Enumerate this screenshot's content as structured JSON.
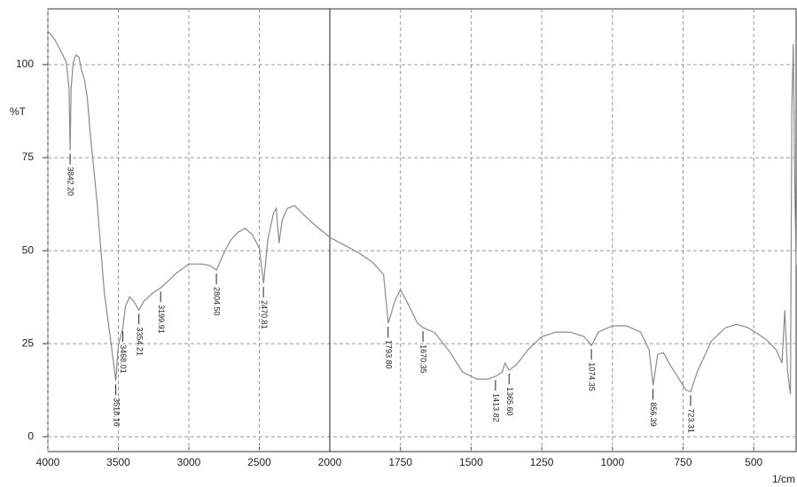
{
  "chart_data": {
    "type": "line",
    "x_label": "1/cm",
    "y_label": "%T",
    "x": [
      4000,
      3950,
      3900,
      3870,
      3850,
      3842,
      3835,
      3820,
      3800,
      3780,
      3760,
      3740,
      3720,
      3700,
      3650,
      3600,
      3550,
      3518,
      3500,
      3468,
      3450,
      3420,
      3390,
      3354,
      3320,
      3250,
      3200,
      3150,
      3100,
      3000,
      2900,
      2850,
      2804,
      2750,
      2700,
      2650,
      2600,
      2550,
      2500,
      2470,
      2440,
      2400,
      2380,
      2360,
      2340,
      2320,
      2300,
      2250,
      2200,
      2100,
      2000,
      1900,
      1850,
      1810,
      1793,
      1770,
      1750,
      1720,
      1690,
      1670,
      1630,
      1580,
      1530,
      1480,
      1440,
      1414,
      1390,
      1380,
      1366,
      1340,
      1300,
      1250,
      1200,
      1150,
      1100,
      1074,
      1050,
      1000,
      950,
      900,
      870,
      856,
      840,
      820,
      800,
      760,
      740,
      723,
      700,
      650,
      600,
      560,
      520,
      480,
      450,
      420,
      400,
      390,
      380,
      370,
      365,
      360,
      355,
      350
    ],
    "series": [
      {
        "color": "#8a8a8a",
        "values": [
          109,
          106.7,
          103,
          100.7,
          93.6,
          77,
          93.6,
          100.7,
          102.6,
          102,
          98.3,
          96,
          91,
          81.7,
          62.6,
          38.8,
          24.5,
          15,
          24.5,
          29.3,
          35,
          37.6,
          36.4,
          34,
          36.4,
          38.8,
          40,
          41.7,
          43.6,
          46.4,
          46.4,
          46,
          44.8,
          49.5,
          53,
          55,
          56,
          54.3,
          50.7,
          41.2,
          53,
          60,
          61.4,
          52,
          57.9,
          59.8,
          61.4,
          62.1,
          60.2,
          56.7,
          53.6,
          49.5,
          47,
          43.6,
          30.5,
          36.4,
          39.5,
          35.2,
          30.5,
          29.3,
          28,
          23.3,
          17.4,
          15.5,
          15.5,
          16.2,
          17.4,
          19.8,
          17.9,
          19.3,
          23.3,
          26.9,
          28.1,
          28.1,
          26.9,
          24.5,
          28.1,
          29.8,
          29.8,
          28.1,
          23.3,
          13.8,
          22.1,
          22.6,
          19.8,
          15,
          12.6,
          12.1,
          17.4,
          25.7,
          29.3,
          30.2,
          29.3,
          27.4,
          25.7,
          23.3,
          19.8,
          34,
          17.4,
          11.4,
          88.8,
          105.5,
          69.8,
          46
        ]
      }
    ],
    "peaks": {
      "x": [
        3842.2,
        3518.16,
        3468.01,
        3354.21,
        3199.91,
        2804.5,
        2470.81,
        1793.8,
        1670.35,
        1413.82,
        1365.6,
        1074.35,
        856.39,
        723.31
      ],
      "y": [
        77,
        15,
        29.3,
        34,
        40,
        44.8,
        41.2,
        30.5,
        29.3,
        16.2,
        17.9,
        24.5,
        13.8,
        12.1
      ],
      "labels": [
        "3842.20",
        "3518.16",
        "3468.01",
        "3354.21",
        "3199.91",
        "2804.50",
        "2470.81",
        "1793.80",
        "1670.35",
        "1413.82",
        "1365.60",
        "1074.35",
        "856.39",
        "723.31"
      ]
    },
    "xlim": [
      4000,
      350
    ],
    "xbreak": 2000,
    "xticks": [
      4000,
      3500,
      3000,
      2500,
      2000,
      1750,
      1500,
      1250,
      1000,
      750,
      500
    ],
    "ylim": [
      -4,
      115
    ],
    "yticks": [
      0,
      25,
      50,
      75,
      100
    ],
    "grid": true
  }
}
